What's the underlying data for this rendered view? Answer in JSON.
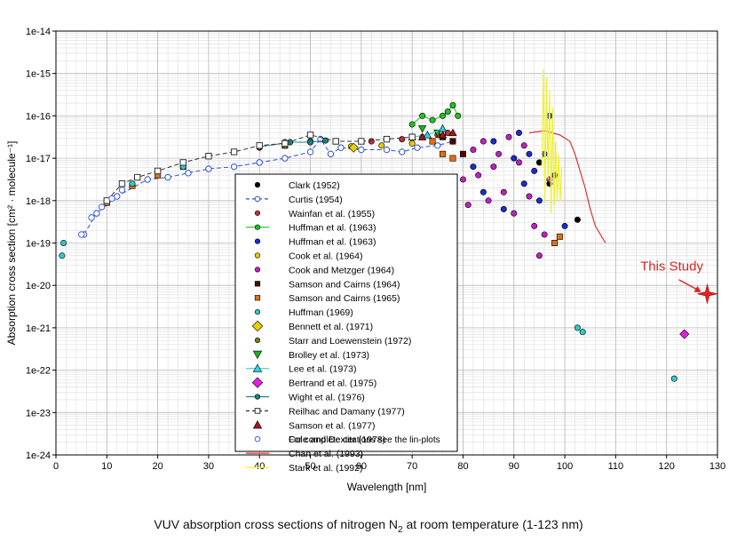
{
  "chart_data": {
    "type": "scatter",
    "title": "",
    "xlabel": "Wavelength [nm]",
    "ylabel": "Absorption cross section [cm² · molecule⁻¹]",
    "xlim": [
      0,
      130
    ],
    "ylim_log10": [
      -24,
      -14
    ],
    "yscale": "log",
    "grid": true,
    "xticks": [
      0,
      10,
      20,
      30,
      40,
      50,
      60,
      70,
      80,
      90,
      100,
      110,
      120,
      130
    ],
    "ytick_labels": [
      "1e-24",
      "1e-23",
      "1e-22",
      "1e-21",
      "1e-20",
      "1e-19",
      "1e-18",
      "1e-17",
      "1e-16",
      "1e-15",
      "1e-14"
    ],
    "legend_placement": "center",
    "legend_note": "For complete citations see the lin-plots",
    "annotation": {
      "text": "This Study",
      "x": 128,
      "y_log10": -20.2,
      "color": "#e02020"
    },
    "caption": {
      "prefix": "VUV absorption cross sections of nitrogen N",
      "sub": "2",
      "suffix": " at room temperature (1-123 nm)"
    },
    "series": [
      {
        "name": "Clark (1952)",
        "marker": "circle",
        "color": "#000000",
        "line": false,
        "points": [
          [
            102.5,
            -18.45
          ],
          [
            97,
            -17.6
          ],
          [
            95,
            -17.1
          ]
        ]
      },
      {
        "name": "Curtis (1954)",
        "marker": "open-circle",
        "color": "#3050d0",
        "line": true,
        "dash": true,
        "points": [
          [
            5.5,
            -18.8
          ],
          [
            8,
            -18.3
          ],
          [
            12,
            -17.9
          ],
          [
            18,
            -17.5
          ],
          [
            22,
            -17.45
          ],
          [
            26,
            -17.35
          ],
          [
            30,
            -17.25
          ],
          [
            35,
            -17.2
          ],
          [
            40,
            -17.1
          ],
          [
            45,
            -17.0
          ],
          [
            50,
            -16.85
          ],
          [
            52,
            -16.55
          ],
          [
            54,
            -16.9
          ],
          [
            56,
            -16.75
          ],
          [
            60,
            -16.8
          ],
          [
            65,
            -16.8
          ],
          [
            68,
            -16.85
          ],
          [
            71,
            -16.75
          ],
          [
            75,
            -16.7
          ],
          [
            78,
            -16.6
          ]
        ]
      },
      {
        "name": "Wainfan et al. (1955)",
        "marker": "circle",
        "color": "#c03030",
        "line": false,
        "points": [
          [
            45,
            -16.62
          ],
          [
            55,
            -16.6
          ],
          [
            62,
            -16.6
          ],
          [
            68,
            -16.55
          ],
          [
            72,
            -16.5
          ],
          [
            75,
            -16.45
          ],
          [
            77,
            -16.4
          ]
        ]
      },
      {
        "name": "Huffman et al. (1963)",
        "marker": "circle",
        "color": "#20c020",
        "line": true,
        "points": [
          [
            70,
            -16.2
          ],
          [
            72,
            -16.0
          ],
          [
            74,
            -16.1
          ],
          [
            76,
            -16.0
          ],
          [
            77,
            -15.9
          ],
          [
            78,
            -15.75
          ],
          [
            79,
            -16.0
          ]
        ]
      },
      {
        "name": "Huffman et al. (1963)",
        "marker": "circle",
        "color": "#1c2cc8",
        "line": false,
        "points": [
          [
            82,
            -17.2
          ],
          [
            84,
            -17.8
          ],
          [
            86,
            -16.6
          ],
          [
            88,
            -18.2
          ],
          [
            90,
            -17.0
          ],
          [
            91,
            -16.4
          ],
          [
            92,
            -17.6
          ],
          [
            93,
            -16.9
          ],
          [
            94,
            -17.3
          ],
          [
            95,
            -18.0
          ],
          [
            96,
            -16.9
          ],
          [
            97,
            -16.0
          ],
          [
            98,
            -17.4
          ],
          [
            100,
            -18.6
          ]
        ]
      },
      {
        "name": "Cook et al. (1964)",
        "marker": "circle",
        "color": "#e8c800",
        "line": false,
        "points": [
          [
            58,
            -16.72
          ],
          [
            64,
            -16.7
          ],
          [
            70,
            -16.65
          ]
        ]
      },
      {
        "name": "Cook and Metzger (1964)",
        "marker": "circle",
        "color": "#c020c0",
        "line": false,
        "points": [
          [
            80,
            -17.5
          ],
          [
            81,
            -18.1
          ],
          [
            82,
            -16.8
          ],
          [
            83,
            -17.4
          ],
          [
            84,
            -16.6
          ],
          [
            85,
            -18.0
          ],
          [
            86,
            -17.2
          ],
          [
            87,
            -16.9
          ],
          [
            88,
            -17.8
          ],
          [
            89,
            -16.5
          ],
          [
            90,
            -18.3
          ],
          [
            91,
            -17.1
          ],
          [
            92,
            -16.7
          ],
          [
            93,
            -17.9
          ],
          [
            94,
            -18.6
          ],
          [
            95,
            -19.3
          ],
          [
            96,
            -18.8
          ],
          [
            97,
            -17.5
          ],
          [
            98,
            -19.0
          ]
        ]
      },
      {
        "name": "Samson and Cairns (1964)",
        "marker": "square",
        "color": "#4a0808",
        "line": false,
        "points": [
          [
            76,
            -16.5
          ],
          [
            78,
            -16.6
          ],
          [
            80,
            -16.9
          ]
        ]
      },
      {
        "name": "Samson and Cairns (1965)",
        "marker": "square",
        "color": "#e07010",
        "line": false,
        "points": [
          [
            10,
            -18.05
          ],
          [
            15,
            -17.65
          ],
          [
            20,
            -17.4
          ],
          [
            25,
            -17.2
          ],
          [
            45,
            -16.7
          ],
          [
            55,
            -16.6
          ],
          [
            74,
            -16.6
          ],
          [
            76,
            -16.9
          ],
          [
            78,
            -17.0
          ],
          [
            98,
            -19.0
          ],
          [
            99,
            -18.85
          ]
        ]
      },
      {
        "name": "Huffman (1969)",
        "marker": "circle",
        "color": "#30c8c8",
        "line": false,
        "points": [
          [
            1.2,
            -19.3
          ],
          [
            1.5,
            -19.0
          ],
          [
            15,
            -17.6
          ],
          [
            25,
            -17.2
          ],
          [
            35,
            -16.85
          ],
          [
            50,
            -16.6
          ],
          [
            102.5,
            -21.0
          ],
          [
            103.5,
            -21.1
          ],
          [
            121.5,
            -22.2
          ]
        ]
      },
      {
        "name": "Bennett et al. (1971)",
        "marker": "diamond",
        "color": "#e8d000",
        "line": false,
        "points": [
          [
            58.5,
            -16.75
          ]
        ]
      },
      {
        "name": "Starr and Loewenstein (1972)",
        "marker": "circle",
        "color": "#708020",
        "line": false,
        "points": [
          [
            40,
            -16.75
          ],
          [
            45,
            -16.7
          ]
        ]
      },
      {
        "name": "Brolley et al. (1973)",
        "marker": "triangle-down",
        "color": "#20b020",
        "line": false,
        "points": [
          [
            72,
            -16.3
          ],
          [
            75,
            -16.4
          ]
        ]
      },
      {
        "name": "Lee et al. (1973)",
        "marker": "triangle",
        "color": "#30d0e0",
        "line": true,
        "points": [
          [
            70,
            -16.5
          ],
          [
            73,
            -16.45
          ],
          [
            76,
            -16.3
          ]
        ]
      },
      {
        "name": "Bertrand et al. (1975)",
        "marker": "diamond",
        "color": "#e020e0",
        "line": false,
        "points": [
          [
            123.5,
            -21.15
          ]
        ]
      },
      {
        "name": "Wight et al. (1976)",
        "marker": "circle",
        "color": "#208080",
        "line": true,
        "points": [
          [
            40,
            -16.73
          ],
          [
            46,
            -16.62
          ],
          [
            50,
            -16.62
          ],
          [
            53,
            -16.58
          ]
        ]
      },
      {
        "name": "Reilhac and Damany (1977)",
        "marker": "open-square",
        "color": "#333333",
        "line": true,
        "dash": true,
        "points": [
          [
            10,
            -18.0
          ],
          [
            13,
            -17.6
          ],
          [
            16,
            -17.45
          ],
          [
            20,
            -17.3
          ],
          [
            25,
            -17.1
          ],
          [
            30,
            -16.95
          ],
          [
            35,
            -16.85
          ],
          [
            40,
            -16.7
          ],
          [
            45,
            -16.65
          ],
          [
            50,
            -16.45
          ],
          [
            55,
            -16.6
          ],
          [
            60,
            -16.6
          ],
          [
            65,
            -16.55
          ],
          [
            70,
            -16.5
          ]
        ]
      },
      {
        "name": "Samson et al. (1977)",
        "marker": "triangle",
        "color": "#a01818",
        "line": false,
        "points": [
          [
            72,
            -16.5
          ],
          [
            76,
            -16.45
          ],
          [
            78,
            -16.4
          ]
        ]
      },
      {
        "name": "Cole and Dexter (1978)",
        "marker": "open-circle",
        "color": "#4060e0",
        "line": false,
        "points": [
          [
            5,
            -18.8
          ],
          [
            7,
            -18.4
          ],
          [
            9,
            -18.15
          ],
          [
            11,
            -17.95
          ],
          [
            13,
            -17.75
          ]
        ]
      },
      {
        "name": "Chan et al. (1993)",
        "marker": "line",
        "color": "#e03030",
        "line": true,
        "points": [
          [
            93,
            -16.4
          ],
          [
            96,
            -16.35
          ],
          [
            99,
            -16.45
          ],
          [
            101,
            -16.6
          ],
          [
            102,
            -16.9
          ],
          [
            103,
            -17.3
          ],
          [
            104,
            -17.7
          ],
          [
            105,
            -18.2
          ],
          [
            106,
            -18.6
          ],
          [
            107,
            -18.8
          ],
          [
            108,
            -19.0
          ]
        ]
      },
      {
        "name": "Stark et al. (1992)",
        "marker": "line",
        "color": "#f0f030",
        "line": true,
        "points": [
          [
            95.5,
            -17.2
          ],
          [
            95.8,
            -14.9
          ],
          [
            96.1,
            -18.0
          ],
          [
            96.4,
            -15.1
          ],
          [
            96.7,
            -17.5
          ],
          [
            97.0,
            -15.4
          ],
          [
            97.3,
            -18.3
          ],
          [
            97.6,
            -15.8
          ],
          [
            97.9,
            -18.1
          ],
          [
            98.2,
            -16.6
          ],
          [
            98.5,
            -18.0
          ],
          [
            98.8,
            -16.9
          ],
          [
            99.1,
            -18.0
          ],
          [
            99.4,
            -17.2
          ]
        ]
      }
    ]
  }
}
